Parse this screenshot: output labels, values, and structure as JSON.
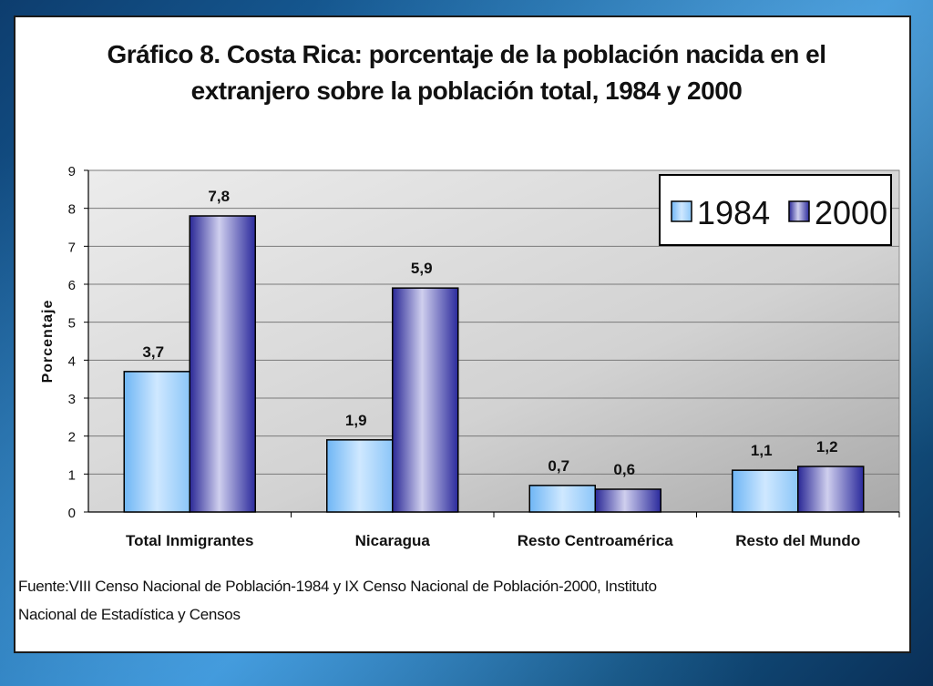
{
  "chart_data": {
    "type": "bar",
    "title_line1": "Gráfico 8. Costa Rica: porcentaje de la población nacida en el",
    "title_line2": "extranjero sobre la población total, 1984 y 2000",
    "xlabel": "",
    "ylabel": "Porcentaje",
    "ylim": [
      0,
      9
    ],
    "yticks": [
      "0",
      "1",
      "2",
      "3",
      "4",
      "5",
      "6",
      "7",
      "8",
      "9"
    ],
    "categories": [
      "Total Inmigrantes",
      "Nicaragua",
      "Resto Centroamérica",
      "Resto del Mundo"
    ],
    "series": [
      {
        "name": "1984",
        "values": [
          3.7,
          1.9,
          0.7,
          1.1
        ],
        "labels": [
          "3,7",
          "1,9",
          "0,7",
          "1,1"
        ]
      },
      {
        "name": "2000",
        "values": [
          7.8,
          5.9,
          0.6,
          1.2
        ],
        "labels": [
          "7,8",
          "5,9",
          "0,6",
          "1,2"
        ]
      }
    ],
    "legend_position": "top-right",
    "grid": true
  },
  "source_line1": "Fuente:VIII Censo Nacional de Población-1984 y IX Censo Nacional de Población-2000, Instituto",
  "source_line2": "Nacional de Estadística y Censos",
  "colors": {
    "series1984": "#a8d4fb",
    "series2000": "#3a39a8",
    "plot_bg": "#d6d6d6"
  }
}
